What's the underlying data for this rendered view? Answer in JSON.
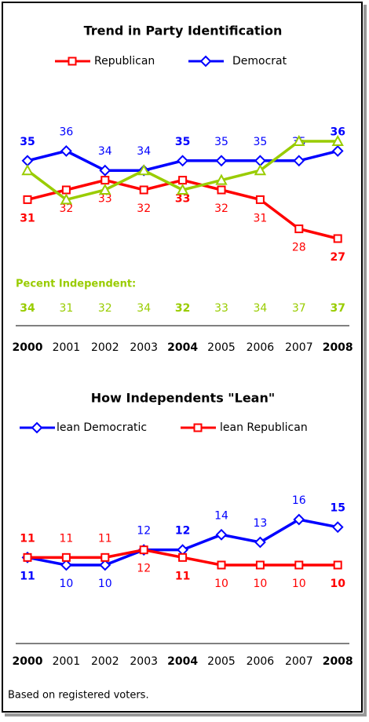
{
  "chart_data": [
    {
      "type": "line",
      "title": "Trend in Party Identification",
      "categories": [
        "2000",
        "2001",
        "2002",
        "2003",
        "2004",
        "2005",
        "2006",
        "2007",
        "2008"
      ],
      "series": [
        {
          "name": "Republican",
          "color": "#ff0000",
          "values": [
            31,
            32,
            33,
            32,
            33,
            32,
            31,
            28,
            27
          ]
        },
        {
          "name": "Democrat",
          "color": "#0000ff",
          "values": [
            35,
            36,
            34,
            34,
            35,
            35,
            35,
            35,
            36
          ]
        },
        {
          "name": "Pecent Independent:",
          "color": "#99cc00",
          "values": [
            34,
            31,
            32,
            34,
            32,
            33,
            34,
            37,
            37
          ]
        }
      ]
    },
    {
      "type": "line",
      "title": "How Independents \"Lean\"",
      "categories": [
        "2000",
        "2001",
        "2002",
        "2003",
        "2004",
        "2005",
        "2006",
        "2007",
        "2008"
      ],
      "series": [
        {
          "name": "lean Democratic",
          "color": "#0000ff",
          "values": [
            11,
            10,
            10,
            12,
            12,
            14,
            13,
            16,
            15
          ]
        },
        {
          "name": "lean Republican",
          "color": "#ff0000",
          "values": [
            11,
            11,
            11,
            12,
            11,
            10,
            10,
            10,
            10
          ]
        }
      ]
    }
  ],
  "footer": "Based on registered voters."
}
